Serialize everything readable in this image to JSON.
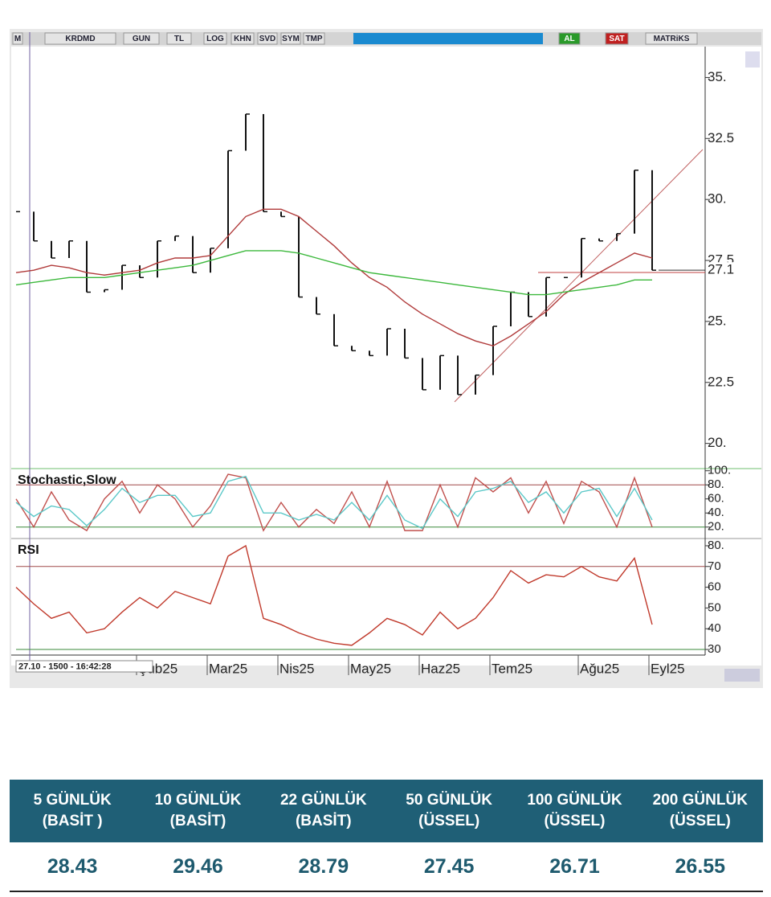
{
  "toolbar": {
    "items": [
      "M",
      "KRDMD",
      "GUN",
      "TL",
      "LOG",
      "KHN",
      "SVD",
      "SYM",
      "TMP",
      "AL",
      "SAT",
      "MATRiKS"
    ]
  },
  "info": "27.10 - 1500 - 16:42:28",
  "chart_data": [
    {
      "type": "price",
      "categories": [
        null,
        null,
        null,
        null,
        null,
        null,
        null,
        "Şub25",
        null,
        null,
        null,
        "Mar25",
        null,
        null,
        null,
        "Nis25",
        null,
        null,
        null,
        "May25",
        null,
        null,
        null,
        "Haz25",
        null,
        null,
        null,
        "Tem25",
        null,
        null,
        null,
        null,
        "Ağu25",
        null,
        null,
        null,
        "Eyl25"
      ],
      "ylim": [
        19,
        36.2
      ],
      "yticks": [
        {
          "value": 20,
          "label": "20."
        },
        22.5,
        {
          "value": 25,
          "label": "25."
        },
        27.5,
        {
          "value": 30,
          "label": "30."
        },
        32.5,
        {
          "value": 35,
          "label": "35."
        }
      ],
      "last": 27.1,
      "series": [
        {
          "color": "#111111",
          "values": [
            29.5,
            28.3,
            27.6,
            28.3,
            26.2,
            26.3,
            27.3,
            26.8,
            28.3,
            28.5,
            27.0,
            28.0,
            32.0,
            33.5,
            29.5,
            29.3,
            26.0,
            25.3,
            24.0,
            23.8,
            23.6,
            24.7,
            23.5,
            22.2,
            23.6,
            22.0,
            22.8,
            24.8,
            26.2,
            25.2,
            26.8,
            26.8,
            28.4,
            28.3,
            28.6,
            31.2,
            27.1
          ]
        },
        {
          "color": "#b03a3a",
          "values": [
            27.0,
            27.1,
            27.3,
            27.2,
            27.0,
            26.9,
            27.0,
            27.1,
            27.4,
            27.6,
            27.6,
            27.7,
            28.5,
            29.3,
            29.6,
            29.6,
            29.3,
            28.7,
            28.1,
            27.4,
            26.8,
            26.4,
            25.8,
            25.3,
            24.9,
            24.5,
            24.2,
            24.0,
            24.4,
            24.9,
            25.4,
            26.1,
            26.6,
            27.0,
            27.4,
            27.8,
            27.6
          ]
        },
        {
          "color": "#3cb83c",
          "values": [
            26.5,
            26.6,
            26.7,
            26.8,
            26.8,
            26.8,
            26.9,
            27.0,
            27.1,
            27.2,
            27.3,
            27.5,
            27.7,
            27.9,
            27.9,
            27.9,
            27.8,
            27.6,
            27.4,
            27.2,
            27.0,
            26.9,
            26.8,
            26.7,
            26.6,
            26.5,
            26.4,
            26.3,
            26.2,
            26.1,
            26.1,
            26.2,
            26.3,
            26.4,
            26.5,
            26.7,
            26.7
          ]
        }
      ]
    },
    {
      "type": "line",
      "title": "Stochastic,Slow",
      "ylim": [
        6,
        100.8
      ],
      "yticks": [
        {
          "value": 100,
          "label": "100."
        },
        {
          "value": 80,
          "label": "80."
        },
        {
          "value": 60,
          "label": "60."
        },
        {
          "value": 40,
          "label": "40."
        },
        {
          "value": 20,
          "label": "20."
        }
      ],
      "hlines": [
        {
          "value": 80,
          "color": "#a04848"
        },
        {
          "value": 20,
          "color": "#3a8a3a"
        }
      ],
      "series": [
        {
          "color": "#c0504d",
          "values": [
            60,
            20,
            70,
            30,
            15,
            60,
            85,
            40,
            80,
            60,
            20,
            50,
            95,
            90,
            15,
            55,
            20,
            45,
            25,
            70,
            20,
            85,
            15,
            15,
            80,
            20,
            90,
            70,
            90,
            40,
            85,
            25,
            85,
            70,
            20,
            90,
            20
          ]
        },
        {
          "color": "#5bc8c8",
          "values": [
            55,
            35,
            50,
            45,
            22,
            45,
            75,
            55,
            65,
            65,
            35,
            40,
            85,
            92,
            40,
            40,
            30,
            38,
            30,
            55,
            30,
            65,
            30,
            18,
            60,
            35,
            70,
            75,
            85,
            55,
            70,
            40,
            70,
            75,
            35,
            75,
            30
          ]
        }
      ]
    },
    {
      "type": "line",
      "title": "RSI",
      "ylim": [
        27.3,
        82.7
      ],
      "yticks": [
        {
          "value": 80,
          "label": "80."
        },
        70,
        60,
        50,
        40,
        30
      ],
      "hlines": [
        {
          "value": 70,
          "color": "#a04848"
        },
        {
          "value": 30,
          "color": "#3a8a3a"
        }
      ],
      "series": [
        {
          "color": "#c0392b",
          "values": [
            60,
            52,
            45,
            48,
            38,
            40,
            48,
            55,
            50,
            58,
            55,
            52,
            75,
            80,
            45,
            42,
            38,
            35,
            33,
            32,
            38,
            45,
            42,
            37,
            48,
            40,
            45,
            55,
            68,
            62,
            66,
            65,
            70,
            65,
            63,
            74,
            42
          ]
        }
      ]
    }
  ],
  "table": {
    "header": [
      [
        "5 GÜNLÜK",
        "(BASİT )"
      ],
      [
        "10 GÜNLÜK",
        "(BASİT)"
      ],
      [
        "22 GÜNLÜK",
        "(BASİT)"
      ],
      [
        "50 GÜNLÜK",
        "(ÜSSEL)"
      ],
      [
        "100 GÜNLÜK",
        "(ÜSSEL)"
      ],
      [
        "200 GÜNLÜK",
        "(ÜSSEL)"
      ]
    ],
    "row": [
      28.43,
      29.46,
      28.79,
      27.45,
      26.71,
      26.55
    ]
  }
}
